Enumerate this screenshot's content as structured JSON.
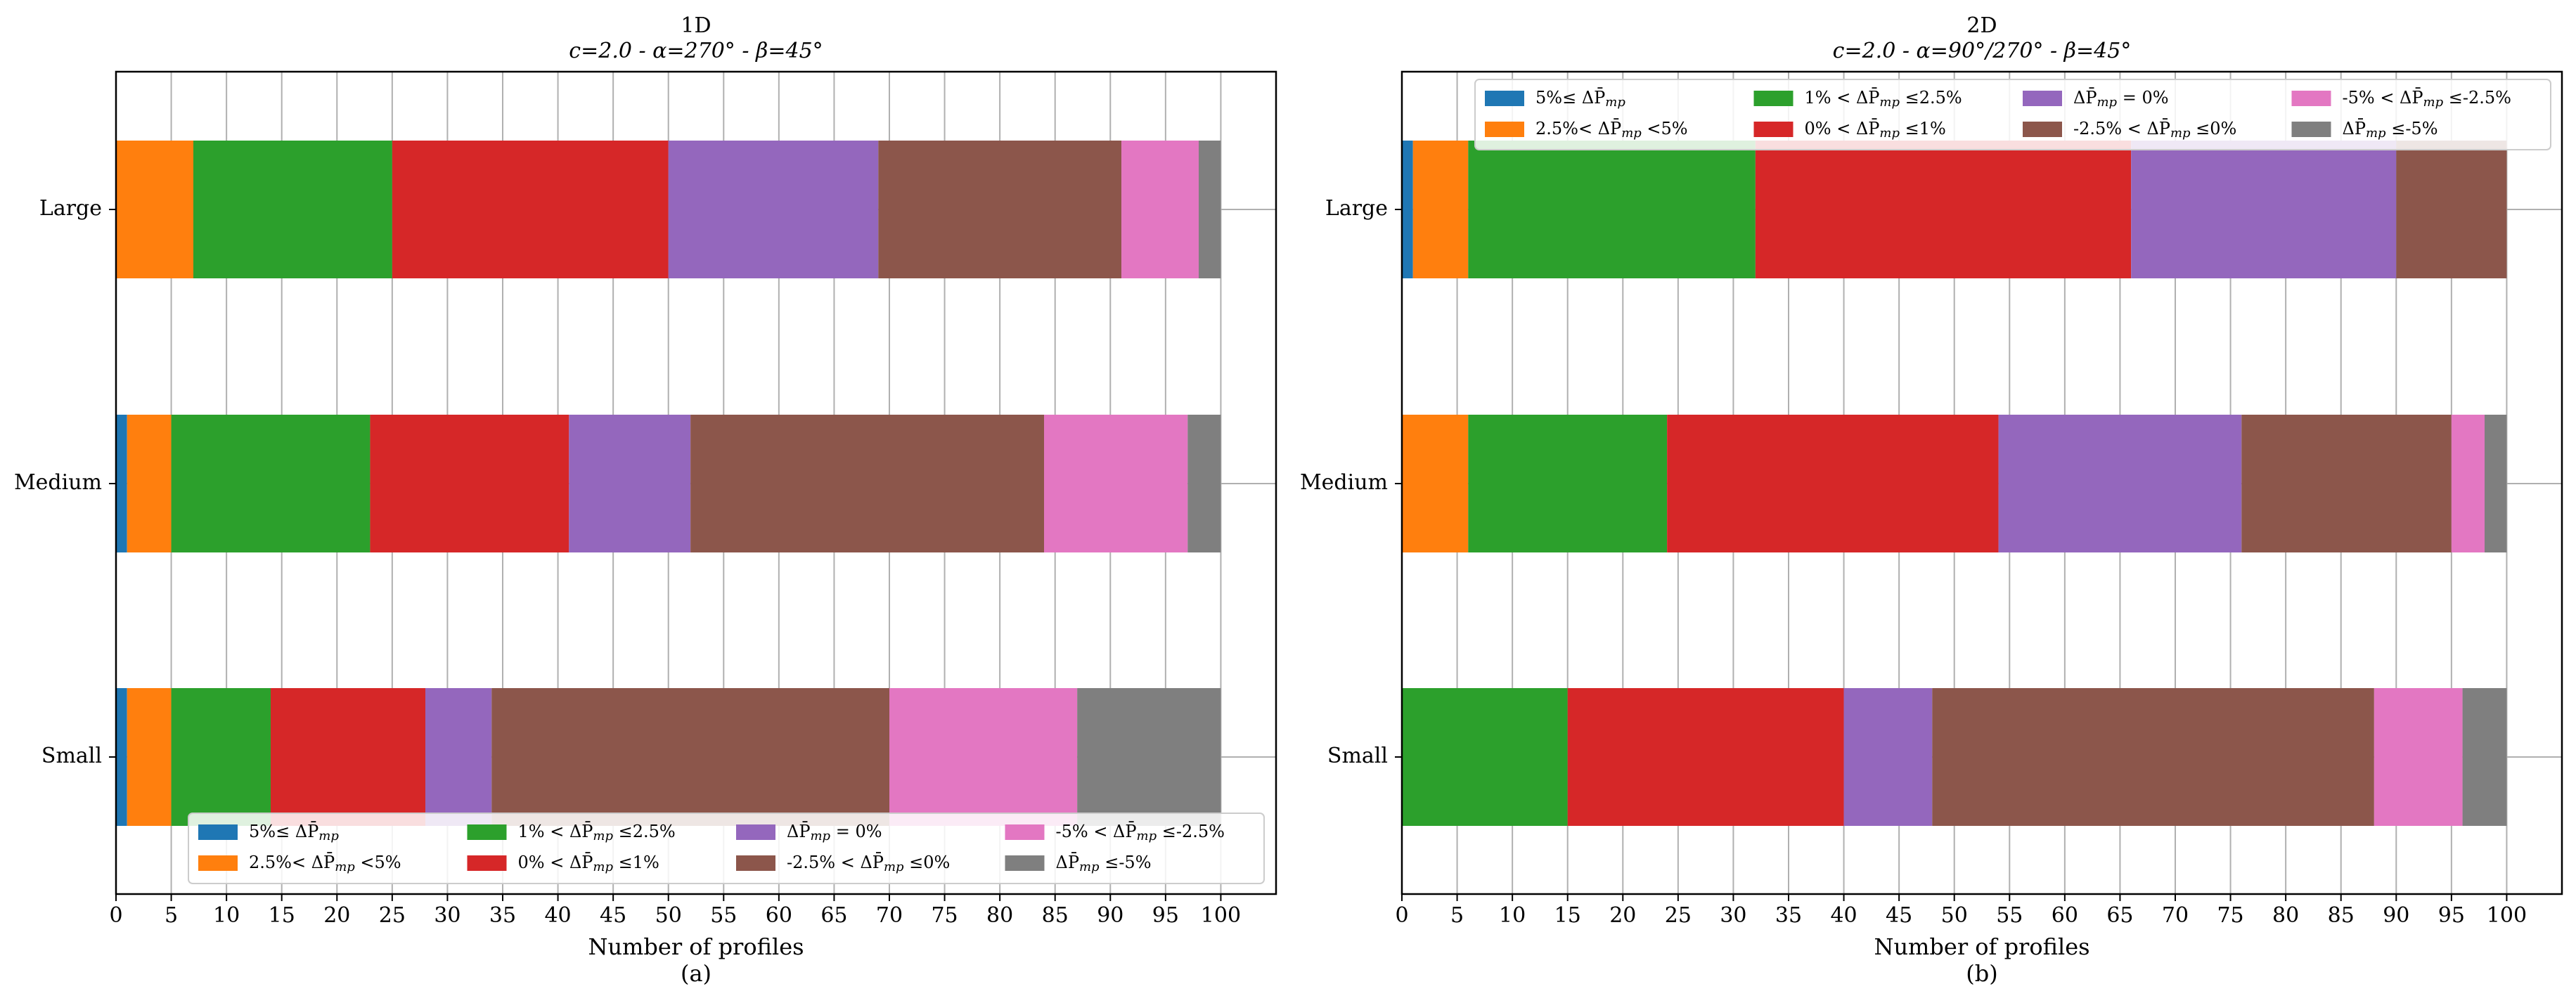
{
  "chart_data": [
    {
      "type": "bar",
      "orientation": "horizontal",
      "stacked": true,
      "title": "1D",
      "subtitle": "c=2.0 - α=270° - β=45°",
      "xlabel": "Number of profiles",
      "caption": "(a)",
      "xlim": [
        0,
        105
      ],
      "xticks": [
        0,
        5,
        10,
        15,
        20,
        25,
        30,
        35,
        40,
        45,
        50,
        55,
        60,
        65,
        70,
        75,
        80,
        85,
        90,
        95,
        100
      ],
      "grid": true,
      "legend_position": "lower-center",
      "categories": [
        "Large",
        "Medium",
        "Small"
      ],
      "series": [
        {
          "name": "5%≤ ΔP̄mp",
          "color": "#1f77b4",
          "values": [
            0,
            1,
            1
          ]
        },
        {
          "name": "2.5%< ΔP̄mp <5%",
          "color": "#ff7f0e",
          "values": [
            7,
            4,
            4
          ]
        },
        {
          "name": "1% < ΔP̄mp ≤2.5%",
          "color": "#2ca02c",
          "values": [
            18,
            18,
            9
          ]
        },
        {
          "name": "0% < ΔP̄mp ≤1%",
          "color": "#d62728",
          "values": [
            25,
            18,
            14
          ]
        },
        {
          "name": "ΔP̄mp = 0%",
          "color": "#9467bd",
          "values": [
            19,
            11,
            6
          ]
        },
        {
          "name": "-2.5% < ΔP̄mp ≤0%",
          "color": "#8c564b",
          "values": [
            22,
            32,
            36
          ]
        },
        {
          "name": "-5% < ΔP̄mp ≤-2.5%",
          "color": "#e377c2",
          "values": [
            7,
            13,
            17
          ]
        },
        {
          "name": "ΔP̄mp ≤-5%",
          "color": "#7f7f7f",
          "values": [
            2,
            3,
            13
          ]
        }
      ]
    },
    {
      "type": "bar",
      "orientation": "horizontal",
      "stacked": true,
      "title": "2D",
      "subtitle": "c=2.0 - α=90°/270° - β=45°",
      "xlabel": "Number of profiles",
      "caption": "(b)",
      "xlim": [
        0,
        105
      ],
      "xticks": [
        0,
        5,
        10,
        15,
        20,
        25,
        30,
        35,
        40,
        45,
        50,
        55,
        60,
        65,
        70,
        75,
        80,
        85,
        90,
        95,
        100
      ],
      "grid": true,
      "legend_position": "upper-center",
      "categories": [
        "Large",
        "Medium",
        "Small"
      ],
      "series": [
        {
          "name": "5%≤ ΔP̄mp",
          "color": "#1f77b4",
          "values": [
            1,
            0,
            0
          ]
        },
        {
          "name": "2.5%< ΔP̄mp <5%",
          "color": "#ff7f0e",
          "values": [
            5,
            6,
            0
          ]
        },
        {
          "name": "1% < ΔP̄mp ≤2.5%",
          "color": "#2ca02c",
          "values": [
            26,
            18,
            15
          ]
        },
        {
          "name": "0% < ΔP̄mp ≤1%",
          "color": "#d62728",
          "values": [
            34,
            30,
            25
          ]
        },
        {
          "name": "ΔP̄mp = 0%",
          "color": "#9467bd",
          "values": [
            24,
            22,
            8
          ]
        },
        {
          "name": "-2.5% < ΔP̄mp ≤0%",
          "color": "#8c564b",
          "values": [
            10,
            19,
            40
          ]
        },
        {
          "name": "-5% < ΔP̄mp ≤-2.5%",
          "color": "#e377c2",
          "values": [
            0,
            3,
            8
          ]
        },
        {
          "name": "ΔP̄mp ≤-5%",
          "color": "#7f7f7f",
          "values": [
            0,
            2,
            4
          ]
        }
      ]
    }
  ]
}
